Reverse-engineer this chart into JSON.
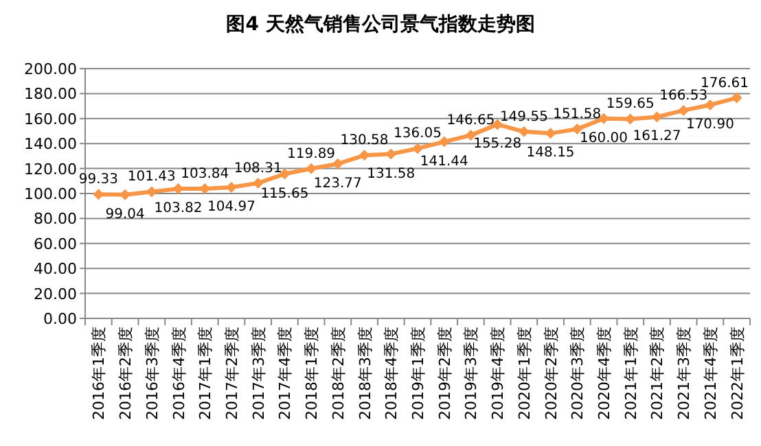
{
  "chart_data": {
    "type": "line",
    "title": "图4 天然气销售公司景气指数走势图",
    "categories": [
      "2016年1季度",
      "2016年2季度",
      "2016年3季度",
      "2016年4季度",
      "2017年1季度",
      "2017年2季度",
      "2017年3季度",
      "2017年4季度",
      "2018年1季度",
      "2018年2季度",
      "2018年3季度",
      "2018年4季度",
      "2019年1季度",
      "2019年2季度",
      "2019年3季度",
      "2019年4季度",
      "2020年1季度",
      "2020年2季度",
      "2020年3季度",
      "2020年4季度",
      "2021年1季度",
      "2021年2季度",
      "2021年3季度",
      "2021年4季度",
      "2022年1季度"
    ],
    "series": [
      {
        "color": "#f79646",
        "values": [
          99.33,
          99.04,
          101.43,
          103.82,
          103.84,
          104.97,
          108.31,
          115.65,
          119.89,
          123.77,
          130.58,
          131.58,
          136.05,
          141.44,
          146.65,
          155.28,
          149.55,
          148.15,
          151.58,
          160.0,
          159.65,
          161.27,
          166.53,
          170.9,
          176.61
        ],
        "value_labels": [
          "99.33",
          "99.04",
          "101.43",
          "103.82",
          "103.84",
          "104.97",
          "108.31",
          "115.65",
          "119.89",
          "123.77",
          "130.58",
          "131.58",
          "136.05",
          "141.44",
          "146.65",
          "155.28",
          "149.55",
          "148.15",
          "151.58",
          "160.00",
          "159.65",
          "161.27",
          "166.53",
          "170.90",
          "176.61"
        ]
      }
    ],
    "ylim": [
      0,
      200
    ],
    "yticks": [
      {
        "value": 0,
        "label": "0.00"
      },
      {
        "value": 20,
        "label": "20.00"
      },
      {
        "value": 40,
        "label": "40.00"
      },
      {
        "value": 60,
        "label": "60.00"
      },
      {
        "value": 80,
        "label": "80.00"
      },
      {
        "value": 100,
        "label": "100.00"
      },
      {
        "value": 120,
        "label": "120.00"
      },
      {
        "value": 140,
        "label": "140.00"
      },
      {
        "value": 160,
        "label": "160.00"
      },
      {
        "value": 180,
        "label": "180.00"
      },
      {
        "value": 200,
        "label": "200.00"
      }
    ],
    "grid": "y",
    "marker": "diamond",
    "line_style": "solid"
  }
}
